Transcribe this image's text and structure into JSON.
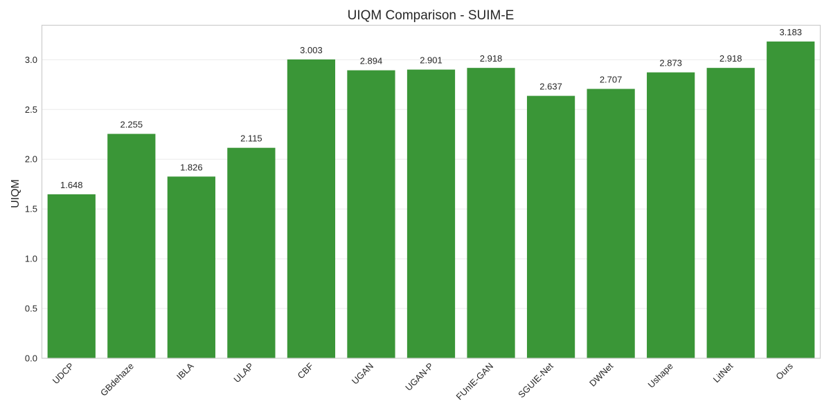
{
  "chart_data": {
    "type": "bar",
    "title": "UIQM Comparison - SUIM-E",
    "xlabel": "",
    "ylabel": "UIQM",
    "categories": [
      "UDCP",
      "GBdehaze",
      "IBLA",
      "ULAP",
      "CBF",
      "UGAN",
      "UGAN-P",
      "FUnIE-GAN",
      "SGUIE-Net",
      "DWNet",
      "Ushape",
      "LitNet",
      "Ours"
    ],
    "values": [
      1.648,
      2.255,
      1.826,
      2.115,
      3.003,
      2.894,
      2.901,
      2.918,
      2.637,
      2.707,
      2.873,
      2.918,
      3.183
    ],
    "value_labels": [
      "1.648",
      "2.255",
      "1.826",
      "2.115",
      "3.003",
      "2.894",
      "2.901",
      "2.918",
      "2.637",
      "2.707",
      "2.873",
      "2.918",
      "3.183"
    ],
    "yticks": [
      0.0,
      0.5,
      1.0,
      1.5,
      2.0,
      2.5,
      3.0
    ],
    "ytick_labels": [
      "0.0",
      "0.5",
      "1.0",
      "1.5",
      "2.0",
      "2.5",
      "3.0"
    ],
    "ylim": [
      0,
      3.35
    ],
    "grid": true,
    "legend": "none",
    "bar_color": "#3a9637"
  }
}
